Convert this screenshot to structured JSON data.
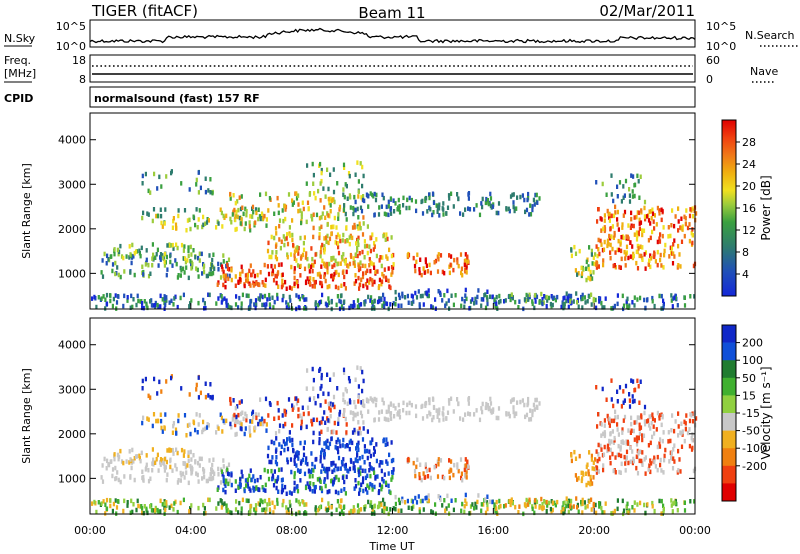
{
  "header": {
    "left_title": "TIGER (fitACF)",
    "center_title": "Beam 11",
    "right_title": "02/Mar/2011"
  },
  "nsky_panel": {
    "left_label": "N.Sky",
    "left_ticks": [
      "10^5",
      "10^0"
    ],
    "right_ticks": [
      "10^5",
      "10^0"
    ],
    "right_label": "N.Search"
  },
  "freq_panel": {
    "left_label_line1": "Freq.",
    "left_label_line2": "[MHz]",
    "left_ticks": [
      "18",
      "8"
    ],
    "right_ticks": [
      "60",
      "0"
    ],
    "right_label": "Nave"
  },
  "cpid": {
    "label": "CPID",
    "text": "normalsound (fast) 157 RF"
  },
  "chart_data": [
    {
      "type": "heatmap",
      "ylabel": "Slant Range [km]",
      "xlabel": "",
      "ylim": [
        200,
        4600
      ],
      "y_ticks": [
        "4000",
        "3000",
        "2000",
        "1000"
      ],
      "y_tick_values": [
        4000,
        3000,
        2000,
        1000
      ],
      "colorbar": {
        "label": "Power [dB]",
        "tick_labels": [
          "28",
          "24",
          "20",
          "16",
          "12",
          "8",
          "4"
        ],
        "tick_values": [
          28,
          24,
          20,
          16,
          12,
          8,
          4
        ],
        "range": [
          0,
          32
        ],
        "colors": [
          "#1428d8",
          "#2050b8",
          "#2e7c6e",
          "#3aa040",
          "#9ccc3c",
          "#f0e020",
          "#f0b010",
          "#f07818",
          "#f04010",
          "#e00000"
        ]
      }
    },
    {
      "type": "heatmap",
      "ylabel": "Slant Range [km]",
      "xlabel": "Time UT",
      "ylim": [
        200,
        4600
      ],
      "y_ticks": [
        "4000",
        "3000",
        "2000",
        "1000"
      ],
      "y_tick_values": [
        4000,
        3000,
        2000,
        1000
      ],
      "x_ticks": [
        "00:00",
        "04:00",
        "08:00",
        "12:00",
        "16:00",
        "20:00",
        "00:00"
      ],
      "x_tick_hours": [
        0,
        4,
        8,
        12,
        16,
        20,
        24
      ],
      "colorbar": {
        "label": "Velocity [m s⁻¹]",
        "tick_labels": [
          "200",
          "100",
          "50",
          "15",
          "-15",
          "-50",
          "-100",
          "-200"
        ],
        "colors": [
          "#1028c8",
          "#1050d8",
          "#207c30",
          "#40b030",
          "#90d040",
          "#c8c8c8",
          "#f0b020",
          "#f08010",
          "#f04010",
          "#e00000"
        ]
      }
    }
  ]
}
